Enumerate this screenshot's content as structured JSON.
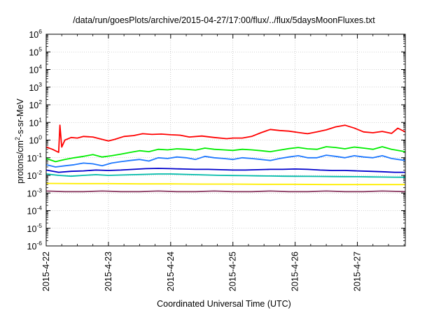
{
  "title": "/data/run/goesPlots/archive/2015-04-27/17:00/flux/../flux/5daysMoonFluxes.txt",
  "chart_data": {
    "type": "line",
    "title": "/data/run/goesPlots/archive/2015-04-27/17:00/flux/../flux/5daysMoonFluxes.txt",
    "xlabel": "Coordinated Universal Time (UTC)",
    "ylabel_prefix": "protons/cm",
    "ylabel_sup": "2",
    "ylabel_suffix": "-s-sr-MeV",
    "yscale": "log",
    "ylim_exp": [
      -6,
      6
    ],
    "x_ticks": [
      "2015-4-22",
      "2015-4-23",
      "2015-4-24",
      "2015-4-25",
      "2015-4-26",
      "2015-4-27"
    ],
    "xlim_days": [
      0,
      5.77
    ],
    "grid": true,
    "legend": "none",
    "series": [
      {
        "color": "#ff0000",
        "x": [
          0,
          0.1,
          0.2,
          0.22,
          0.25,
          0.3,
          0.4,
          0.5,
          0.6,
          0.75,
          0.9,
          1.0,
          1.1,
          1.25,
          1.4,
          1.55,
          1.7,
          1.85,
          2.0,
          2.15,
          2.3,
          2.5,
          2.7,
          2.9,
          3.0,
          3.15,
          3.3,
          3.45,
          3.6,
          3.75,
          3.9,
          4.05,
          4.2,
          4.35,
          4.5,
          4.65,
          4.8,
          4.95,
          5.1,
          5.25,
          5.4,
          5.55,
          5.65,
          5.77
        ],
        "y": [
          0.4,
          0.3,
          0.2,
          7,
          0.4,
          1.0,
          1.4,
          1.3,
          1.6,
          1.5,
          1.1,
          0.9,
          1.1,
          1.6,
          1.8,
          2.3,
          2.1,
          2.2,
          2.0,
          1.9,
          1.5,
          1.7,
          1.4,
          1.2,
          1.3,
          1.3,
          1.6,
          2.6,
          4.0,
          3.5,
          3.2,
          2.7,
          2.3,
          2.9,
          3.8,
          5.6,
          7.0,
          4.8,
          2.9,
          2.6,
          3.1,
          2.4,
          4.7,
          2.9
        ]
      },
      {
        "color": "#00ee00",
        "x": [
          0,
          0.15,
          0.3,
          0.45,
          0.6,
          0.75,
          0.9,
          1.05,
          1.2,
          1.35,
          1.5,
          1.65,
          1.8,
          1.95,
          2.1,
          2.25,
          2.4,
          2.55,
          2.7,
          2.85,
          3.0,
          3.15,
          3.3,
          3.45,
          3.6,
          3.75,
          3.9,
          4.05,
          4.2,
          4.35,
          4.5,
          4.65,
          4.8,
          4.95,
          5.1,
          5.25,
          5.4,
          5.55,
          5.77
        ],
        "y": [
          0.09,
          0.06,
          0.08,
          0.1,
          0.12,
          0.15,
          0.11,
          0.13,
          0.16,
          0.2,
          0.25,
          0.22,
          0.3,
          0.28,
          0.32,
          0.3,
          0.27,
          0.35,
          0.3,
          0.28,
          0.26,
          0.3,
          0.28,
          0.25,
          0.22,
          0.27,
          0.33,
          0.38,
          0.32,
          0.3,
          0.42,
          0.38,
          0.32,
          0.4,
          0.35,
          0.3,
          0.42,
          0.3,
          0.22
        ]
      },
      {
        "color": "#1e78ff",
        "x": [
          0,
          0.15,
          0.3,
          0.45,
          0.6,
          0.75,
          0.9,
          1.05,
          1.2,
          1.35,
          1.5,
          1.65,
          1.8,
          1.95,
          2.1,
          2.25,
          2.4,
          2.55,
          2.7,
          2.85,
          3.0,
          3.15,
          3.3,
          3.45,
          3.6,
          3.75,
          3.9,
          4.05,
          4.2,
          4.35,
          4.5,
          4.65,
          4.8,
          4.95,
          5.1,
          5.25,
          5.4,
          5.55,
          5.77
        ],
        "y": [
          0.04,
          0.03,
          0.035,
          0.04,
          0.05,
          0.045,
          0.035,
          0.05,
          0.06,
          0.07,
          0.08,
          0.065,
          0.1,
          0.09,
          0.11,
          0.1,
          0.08,
          0.12,
          0.1,
          0.09,
          0.08,
          0.1,
          0.09,
          0.08,
          0.07,
          0.09,
          0.11,
          0.13,
          0.1,
          0.1,
          0.14,
          0.12,
          0.1,
          0.13,
          0.11,
          0.1,
          0.13,
          0.09,
          0.07
        ]
      },
      {
        "color": "#0000cc",
        "x": [
          0,
          0.2,
          0.4,
          0.6,
          0.8,
          1.0,
          1.2,
          1.4,
          1.6,
          1.8,
          2.0,
          2.2,
          2.4,
          2.6,
          2.8,
          3.0,
          3.2,
          3.4,
          3.6,
          3.8,
          4.0,
          4.2,
          4.4,
          4.6,
          4.8,
          5.0,
          5.2,
          5.4,
          5.6,
          5.77
        ],
        "y": [
          0.02,
          0.015,
          0.017,
          0.018,
          0.02,
          0.019,
          0.02,
          0.022,
          0.024,
          0.025,
          0.024,
          0.023,
          0.022,
          0.022,
          0.021,
          0.02,
          0.02,
          0.021,
          0.022,
          0.022,
          0.023,
          0.022,
          0.02,
          0.019,
          0.019,
          0.018,
          0.017,
          0.016,
          0.015,
          0.015
        ]
      },
      {
        "color": "#00bbaa",
        "x": [
          0,
          0.2,
          0.4,
          0.6,
          0.8,
          1.0,
          1.2,
          1.4,
          1.6,
          1.8,
          2.0,
          2.2,
          2.4,
          2.6,
          2.8,
          3.0,
          3.2,
          3.4,
          3.6,
          3.8,
          4.0,
          4.2,
          4.4,
          4.6,
          4.8,
          5.0,
          5.2,
          5.4,
          5.6,
          5.77
        ],
        "y": [
          0.012,
          0.01,
          0.009,
          0.01,
          0.011,
          0.01,
          0.0105,
          0.011,
          0.0115,
          0.012,
          0.012,
          0.0115,
          0.011,
          0.0105,
          0.01,
          0.0098,
          0.0096,
          0.0094,
          0.0092,
          0.009,
          0.0089,
          0.0088,
          0.0087,
          0.0086,
          0.0085,
          0.0084,
          0.0082,
          0.008,
          0.0079,
          0.0078
        ]
      },
      {
        "color": "#ffee00",
        "x": [
          0,
          0.5,
          1.0,
          1.5,
          2.0,
          2.5,
          3.0,
          3.5,
          4.0,
          4.5,
          5.0,
          5.5,
          5.77
        ],
        "y": [
          0.0035,
          0.0034,
          0.0034,
          0.0033,
          0.0033,
          0.0032,
          0.0032,
          0.0031,
          0.0031,
          0.003,
          0.003,
          0.003,
          0.003
        ]
      },
      {
        "color": "#8b3a62",
        "x": [
          0,
          0.3,
          0.6,
          0.9,
          1.2,
          1.5,
          1.8,
          2.1,
          2.4,
          2.7,
          3.0,
          3.3,
          3.6,
          3.9,
          4.2,
          4.5,
          4.8,
          5.1,
          5.4,
          5.77
        ],
        "y": [
          0.0013,
          0.0012,
          0.0012,
          0.0013,
          0.0012,
          0.0012,
          0.0013,
          0.0012,
          0.0012,
          0.0013,
          0.0012,
          0.0012,
          0.0013,
          0.0012,
          0.0012,
          0.0013,
          0.0012,
          0.0012,
          0.0013,
          0.0012
        ]
      }
    ]
  }
}
